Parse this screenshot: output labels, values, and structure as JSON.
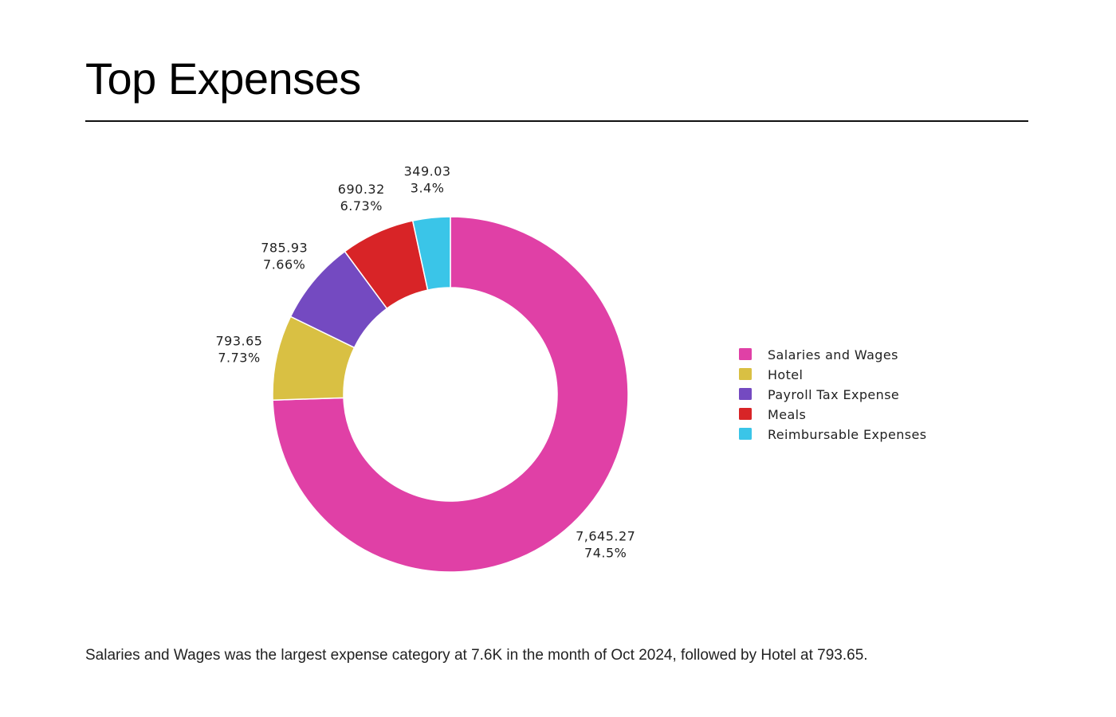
{
  "page": {
    "title": "Top Expenses",
    "summary": "Salaries and Wages was the largest expense category at 7.6K in the month of Oct 2024, followed by Hotel at 793.65."
  },
  "chart_data": {
    "type": "pie",
    "subtype": "donut",
    "legend_position": "right",
    "slices": [
      {
        "name": "Salaries and Wages",
        "value": 7645.27,
        "value_label": "7,645.27",
        "percent_label": "74.5%",
        "color": "#e040a6"
      },
      {
        "name": "Hotel",
        "value": 793.65,
        "value_label": "793.65",
        "percent_label": "7.73%",
        "color": "#d9c043"
      },
      {
        "name": "Payroll Tax Expense",
        "value": 785.93,
        "value_label": "785.93",
        "percent_label": "7.66%",
        "color": "#744ac1"
      },
      {
        "name": "Meals",
        "value": 690.32,
        "value_label": "690.32",
        "percent_label": "6.73%",
        "color": "#d82427"
      },
      {
        "name": "Reimbursable Expenses",
        "value": 349.03,
        "value_label": "349.03",
        "percent_label": "3.4%",
        "color": "#3ac5e8"
      }
    ]
  }
}
